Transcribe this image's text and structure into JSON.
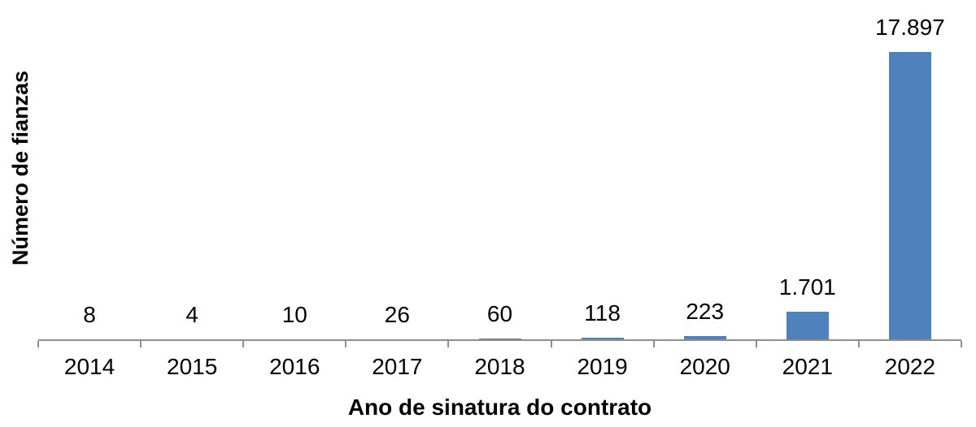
{
  "chart_data": {
    "type": "bar",
    "title": "",
    "xlabel": "Ano de sinatura do contrato",
    "ylabel": "Número de fianzas",
    "categories": [
      "2014",
      "2015",
      "2016",
      "2017",
      "2018",
      "2019",
      "2020",
      "2021",
      "2022"
    ],
    "values": [
      8,
      4,
      10,
      26,
      60,
      118,
      223,
      1701,
      17897
    ],
    "value_labels": [
      "8",
      "4",
      "10",
      "26",
      "60",
      "118",
      "223",
      "1.701",
      "17.897"
    ],
    "ylim": [
      0,
      17897
    ],
    "grid": false,
    "legend": false,
    "bar_color": "#4F81BD",
    "axis_color": "#8E8E8E",
    "text_color": "#000000"
  }
}
